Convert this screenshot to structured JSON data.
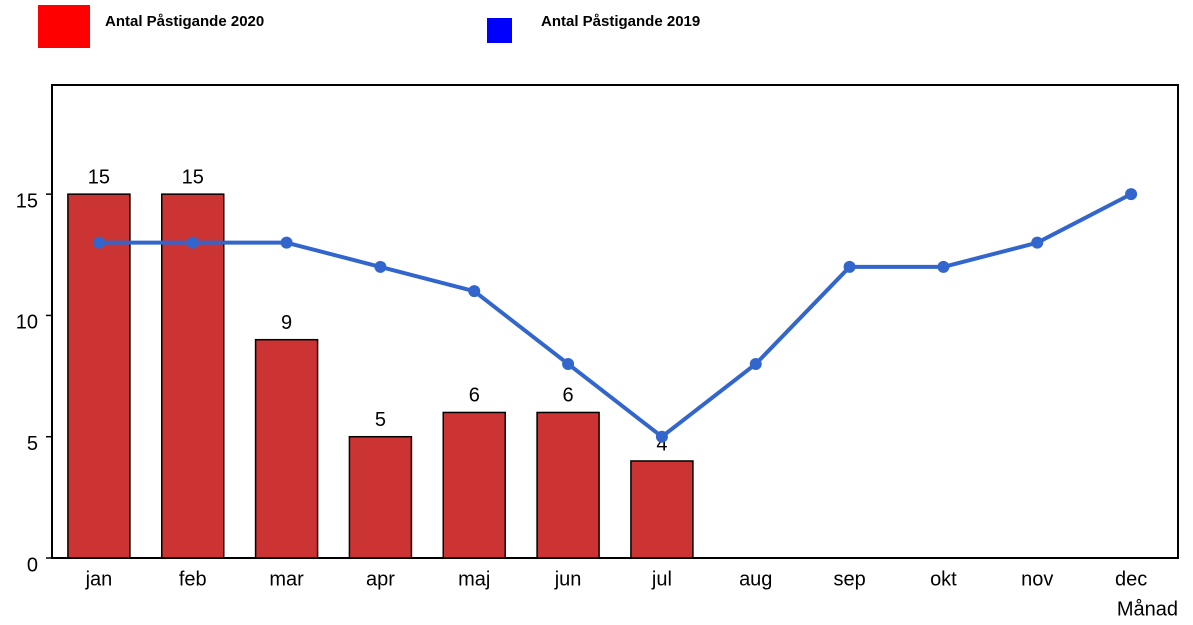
{
  "chart_data": {
    "type": "bar_line",
    "categories": [
      "jan",
      "feb",
      "mar",
      "apr",
      "maj",
      "jun",
      "jul",
      "aug",
      "sep",
      "okt",
      "nov",
      "dec"
    ],
    "series": [
      {
        "name": "Antal Påstigande 2020",
        "type": "bar",
        "color": "#cc3333",
        "legend_color": "#ff0000",
        "values": [
          15,
          15,
          9,
          5,
          6,
          6,
          4,
          null,
          null,
          null,
          null,
          null
        ]
      },
      {
        "name": "Antal Påstigande 2019",
        "type": "line",
        "color": "#3366cc",
        "legend_color": "#0000ff",
        "values": [
          13,
          13,
          13,
          12,
          11,
          8,
          5,
          8,
          12,
          12,
          13,
          15
        ]
      }
    ],
    "x_label": "Månad",
    "ylim": [
      0,
      19.5
    ],
    "yticks": [
      0,
      5,
      10,
      15
    ]
  }
}
